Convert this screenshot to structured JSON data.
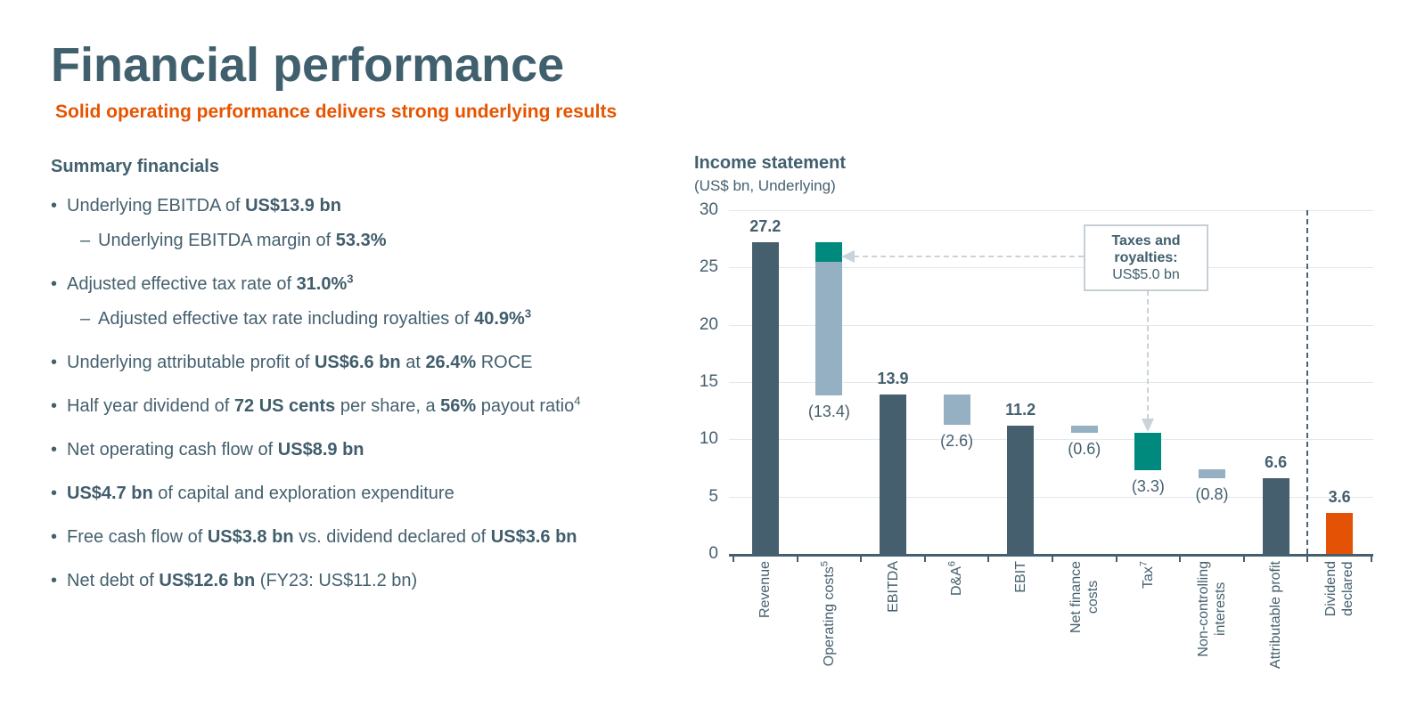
{
  "slide": {
    "title": "Financial performance",
    "subtitle": "Solid operating performance delivers strong underlying results"
  },
  "summary": {
    "heading": "Summary financials",
    "bullet_marker": "•",
    "sub_marker": "–",
    "bullets": [
      {
        "indent": 0,
        "parts": [
          {
            "text": "Underlying EBITDA of "
          },
          {
            "text": "US$13.9 bn",
            "bold": true
          }
        ]
      },
      {
        "indent": 1,
        "parts": [
          {
            "text": "Underlying EBITDA margin of "
          },
          {
            "text": "53.3%",
            "bold": true
          }
        ]
      },
      {
        "indent": 0,
        "parts": [
          {
            "text": "Adjusted effective tax rate of "
          },
          {
            "text": "31.0%",
            "bold": true
          },
          {
            "text": "3",
            "sup": true,
            "bold": true
          }
        ]
      },
      {
        "indent": 1,
        "parts": [
          {
            "text": "Adjusted effective tax rate including royalties of "
          },
          {
            "text": "40.9%",
            "bold": true
          },
          {
            "text": "3",
            "sup": true,
            "bold": true
          }
        ]
      },
      {
        "indent": 0,
        "parts": [
          {
            "text": "Underlying attributable profit of "
          },
          {
            "text": "US$6.6 bn",
            "bold": true
          },
          {
            "text": " at "
          },
          {
            "text": "26.4%",
            "bold": true
          },
          {
            "text": " ROCE"
          }
        ]
      },
      {
        "indent": 0,
        "parts": [
          {
            "text": "Half year dividend of "
          },
          {
            "text": "72 US cents",
            "bold": true
          },
          {
            "text": " per share, a "
          },
          {
            "text": "56%",
            "bold": true
          },
          {
            "text": " payout ratio"
          },
          {
            "text": "4",
            "sup": true
          }
        ]
      },
      {
        "indent": 0,
        "parts": [
          {
            "text": "Net operating cash flow of "
          },
          {
            "text": "US$8.9 bn",
            "bold": true
          }
        ]
      },
      {
        "indent": 0,
        "parts": [
          {
            "text": "US$4.7 bn",
            "bold": true
          },
          {
            "text": " of capital and exploration expenditure"
          }
        ]
      },
      {
        "indent": 0,
        "parts": [
          {
            "text": "Free cash flow of "
          },
          {
            "text": "US$3.8 bn",
            "bold": true
          },
          {
            "text": " vs. dividend declared of "
          },
          {
            "text": "US$3.6 bn",
            "bold": true
          }
        ]
      },
      {
        "indent": 0,
        "parts": [
          {
            "text": "Net debt of "
          },
          {
            "text": "US$12.6 bn",
            "bold": true
          },
          {
            "text": " (FY23: US$11.2 bn)"
          }
        ]
      }
    ]
  },
  "chart_data": {
    "type": "bar",
    "subtype": "waterfall",
    "title": "Income statement",
    "subtitle": "(US$ bn, Underlying)",
    "ylim": [
      0,
      30
    ],
    "yticks": [
      0,
      5,
      10,
      15,
      20,
      25,
      30
    ],
    "grid": true,
    "legend": "none",
    "colors": {
      "solid": "#465F6E",
      "decrease": "#94B0C2",
      "taxes": "#008A7D",
      "dividend": "#E35205"
    },
    "bars": [
      {
        "label": "Revenue",
        "label_lines": [
          "Revenue"
        ],
        "value": 27.2,
        "value_label": "27.2",
        "label_position": "above",
        "segments": [
          {
            "from": 0,
            "to": 27.2,
            "color": "solid"
          }
        ]
      },
      {
        "label": "Operating costs",
        "sup": "5",
        "label_lines": [
          "Operating costs"
        ],
        "value": -13.4,
        "value_label": "(13.4)",
        "label_position": "below",
        "segments": [
          {
            "from": 13.8,
            "to": 25.5,
            "color": "decrease"
          },
          {
            "from": 25.5,
            "to": 27.2,
            "color": "taxes"
          }
        ]
      },
      {
        "label": "EBITDA",
        "label_lines": [
          "EBITDA"
        ],
        "value": 13.9,
        "value_label": "13.9",
        "label_position": "above",
        "segments": [
          {
            "from": 0,
            "to": 13.9,
            "color": "solid"
          }
        ]
      },
      {
        "label": "D&A",
        "sup": "6",
        "label_lines": [
          "D&A"
        ],
        "value": -2.6,
        "value_label": "(2.6)",
        "label_position": "below",
        "segments": [
          {
            "from": 11.3,
            "to": 13.9,
            "color": "decrease"
          }
        ]
      },
      {
        "label": "EBIT",
        "label_lines": [
          "EBIT"
        ],
        "value": 11.2,
        "value_label": "11.2",
        "label_position": "above",
        "segments": [
          {
            "from": 0,
            "to": 11.2,
            "color": "solid"
          }
        ]
      },
      {
        "label": "Net finance costs",
        "label_lines": [
          "Net finance",
          "costs"
        ],
        "value": -0.6,
        "value_label": "(0.6)",
        "label_position": "below",
        "segments": [
          {
            "from": 10.6,
            "to": 11.2,
            "color": "decrease"
          }
        ]
      },
      {
        "label": "Tax",
        "sup": "7",
        "label_lines": [
          "Tax"
        ],
        "value": -3.3,
        "value_label": "(3.3)",
        "label_position": "below",
        "segments": [
          {
            "from": 7.3,
            "to": 10.6,
            "color": "taxes"
          }
        ]
      },
      {
        "label": "Non-controlling interests",
        "label_lines": [
          "Non-controlling",
          "interests"
        ],
        "value": -0.8,
        "value_label": "(0.8)",
        "label_position": "below",
        "segments": [
          {
            "from": 6.6,
            "to": 7.4,
            "color": "decrease"
          }
        ]
      },
      {
        "label": "Attributable profit",
        "label_lines": [
          "Attributable profit"
        ],
        "value": 6.6,
        "value_label": "6.6",
        "label_position": "above",
        "segments": [
          {
            "from": 0,
            "to": 6.6,
            "color": "solid"
          }
        ]
      },
      {
        "label": "Dividend declared",
        "label_lines": [
          "Dividend",
          "declared"
        ],
        "value": 3.6,
        "value_label": "3.6",
        "label_position": "above",
        "segments": [
          {
            "from": 0,
            "to": 3.6,
            "color": "dividend"
          }
        ]
      }
    ],
    "separator_before_index": 9,
    "annotation": {
      "title": "Taxes and royalties:",
      "value": "US$5.0 bn",
      "points_to": [
        "Operating costs",
        "Tax"
      ]
    }
  }
}
